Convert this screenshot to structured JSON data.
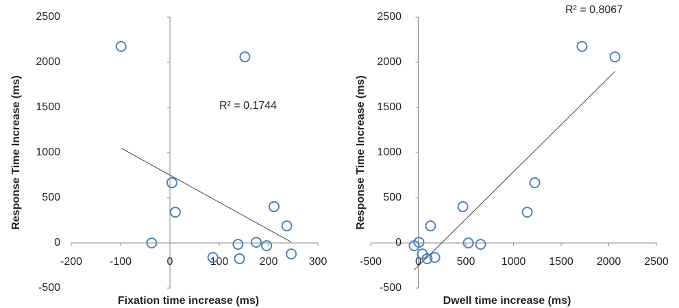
{
  "chart_data": [
    {
      "type": "scatter",
      "x_label": "Fixation time increase (ms)",
      "y_label": "Response Time Increase (ms)",
      "annotation": "R² = 0,1744",
      "xlim": [
        -200,
        300
      ],
      "xticks": [
        -200,
        -100,
        0,
        100,
        200,
        300
      ],
      "ylim": [
        -500,
        2500
      ],
      "yticks": [
        -500,
        0,
        500,
        1000,
        1500,
        2000,
        2500
      ],
      "series": [
        {
          "color": "#4f81bd",
          "x": [
            -99,
            152,
            -37,
            4,
            11,
            87,
            138,
            141,
            175,
            196,
            211,
            237,
            246
          ],
          "values": [
            2175,
            2060,
            0,
            667,
            341,
            -160,
            -15,
            -174,
            8,
            -30,
            402,
            189,
            -121
          ]
        }
      ],
      "trendline": {
        "color": "#404040",
        "x": [
          -99,
          246
        ],
        "values": [
          1050,
          10
        ]
      }
    },
    {
      "type": "scatter",
      "x_label": "Dwell time increase (ms)",
      "y_label": "Response Time Increase (ms)",
      "annotation": "R² = 0,8067",
      "xlim": [
        -500,
        2500
      ],
      "xticks": [
        -500,
        0,
        500,
        1000,
        1500,
        2000,
        2500
      ],
      "ylim": [
        -500,
        2500
      ],
      "yticks": [
        -500,
        0,
        500,
        1000,
        1500,
        2000,
        2500
      ],
      "series": [
        {
          "color": "#4f81bd",
          "x": [
            1719,
            2065,
            -43,
            7,
            43,
            93,
            129,
            173,
            468,
            525,
            655,
            1144,
            1223
          ],
          "values": [
            2175,
            2060,
            -30,
            8,
            -121,
            -174,
            189,
            -160,
            402,
            0,
            -15,
            341,
            667
          ]
        }
      ],
      "trendline": {
        "color": "#404040",
        "x": [
          -43,
          2065
        ],
        "values": [
          -300,
          1900
        ]
      }
    }
  ]
}
